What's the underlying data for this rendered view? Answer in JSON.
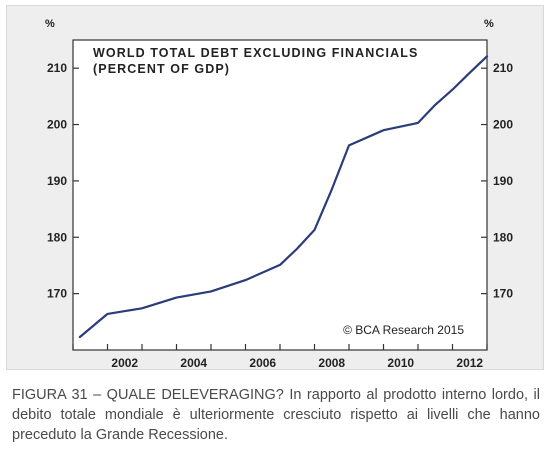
{
  "chart_data": {
    "type": "line",
    "title": "WORLD TOTAL DEBT EXCLUDING FINANCIALS",
    "subtitle": "(PERCENT OF GDP)",
    "credit": "© BCA Research 2015",
    "y_unit_left": "%",
    "y_unit_right": "%",
    "xlabel": "",
    "ylabel": "",
    "xlim": [
      2001,
      2013
    ],
    "ylim": [
      160,
      215
    ],
    "x_ticks": [
      2001,
      2002,
      2003,
      2004,
      2005,
      2006,
      2007,
      2008,
      2009,
      2010,
      2011,
      2012,
      2013
    ],
    "x_tick_labels": [
      "2002",
      "2004",
      "2006",
      "2008",
      "2010",
      "2012"
    ],
    "x_tick_label_values": [
      2002,
      2004,
      2006,
      2008,
      2010,
      2012
    ],
    "y_ticks": [
      170,
      180,
      190,
      200,
      210
    ],
    "y_tick_labels": [
      "170",
      "180",
      "190",
      "200",
      "210"
    ],
    "grid": false,
    "line_color": "#2b3c7a",
    "series": [
      {
        "x": [
          2001.2,
          2002.0,
          2003.0,
          2004.0,
          2005.0,
          2006.0,
          2007.0,
          2007.5,
          2008.0,
          2008.5,
          2009.0,
          2010.0,
          2011.0,
          2011.5,
          2012.0,
          2012.5,
          2013.0
        ],
        "values": [
          162.3,
          166.4,
          167.4,
          169.3,
          170.4,
          172.4,
          175.1,
          178.0,
          181.3,
          188.5,
          196.3,
          199.0,
          200.3,
          203.5,
          206.2,
          209.2,
          212.1
        ]
      }
    ]
  },
  "caption": {
    "label": "FIGURA 31 – QUALE DELEVERAGING?",
    "text": " In rapporto al prodotto interno lordo, il debito totale mondiale è ulteriormente cresciuto rispetto ai livelli che hanno preceduto la Grande Recessione."
  }
}
